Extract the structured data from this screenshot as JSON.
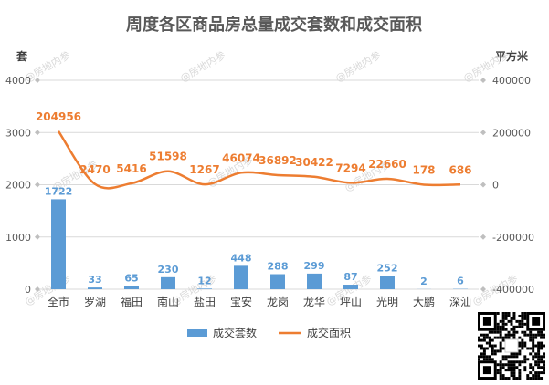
{
  "chart_data": {
    "type": "bar",
    "title": "周度各区商品房总量成交套数和成交面积",
    "left_axis_unit": "套",
    "right_axis_unit": "平方米",
    "categories": [
      "全市",
      "罗湖",
      "福田",
      "南山",
      "盐田",
      "宝安",
      "龙岗",
      "龙华",
      "坪山",
      "光明",
      "大鹏",
      "深汕"
    ],
    "series": [
      {
        "name": "成交套数",
        "type": "bar",
        "axis": "left",
        "color": "#5b9bd5",
        "values": [
          1722,
          33,
          65,
          230,
          12,
          448,
          288,
          299,
          87,
          252,
          2,
          6
        ]
      },
      {
        "name": "成交面积",
        "type": "line",
        "axis": "right",
        "color": "#ed7d31",
        "values": [
          204956,
          2470,
          5416,
          51598,
          1267,
          46074,
          36892,
          30422,
          7294,
          22660,
          178,
          686
        ]
      }
    ],
    "left_ylim": [
      0,
      4000
    ],
    "left_ticks": [
      "0",
      "1000",
      "2000",
      "3000",
      "4000"
    ],
    "right_ylim": [
      -400000,
      400000
    ],
    "right_ticks": [
      "-400000",
      "-200000",
      "0",
      "200000",
      "400000"
    ],
    "grid": true,
    "legend_position": "bottom"
  },
  "watermark_text": "@房地内参",
  "qr_code": "qr-code"
}
